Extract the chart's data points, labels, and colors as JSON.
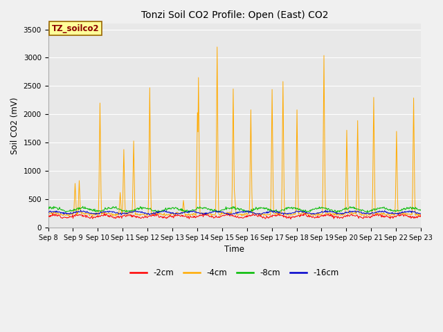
{
  "title": "Tonzi Soil CO2 Profile: Open (East) CO2",
  "ylabel": "Soil CO2 (mV)",
  "xlabel": "Time",
  "legend_label": "TZ_soilco2",
  "ylim": [
    0,
    3600
  ],
  "yticks": [
    0,
    500,
    1000,
    1500,
    2000,
    2500,
    3000,
    3500
  ],
  "x_labels": [
    "Sep 8",
    "Sep 9",
    "Sep 10",
    "Sep 11",
    "Sep 12",
    "Sep 13",
    "Sep 14",
    "Sep 15",
    "Sep 16",
    "Sep 17",
    "Sep 18",
    "Sep 19",
    "Sep 20",
    "Sep 21",
    "Sep 22",
    "Sep 23"
  ],
  "series_colors": {
    "-2cm": "#ff0000",
    "-4cm": "#ffaa00",
    "-8cm": "#00bb00",
    "-16cm": "#0000cc"
  },
  "fig_bg_color": "#f0f0f0",
  "plot_bg_color": "#e8e8e8",
  "grid_color": "#ffffff",
  "legend_entries": [
    "-2cm",
    "-4cm",
    "-8cm",
    "-16cm"
  ],
  "spike_days": [
    1.1,
    1.25,
    2.1,
    2.9,
    3.05,
    3.45,
    4.1,
    5.45,
    6.0,
    6.05,
    6.8,
    7.45,
    7.5,
    8.15,
    9.0,
    9.45,
    10.0,
    11.1,
    12.0,
    12.45,
    13.1,
    14.0,
    14.7
  ],
  "spike_heights": [
    780,
    830,
    2200,
    620,
    1380,
    1530,
    2470,
    480,
    2030,
    2650,
    3190,
    2450,
    550,
    2080,
    2440,
    2580,
    2080,
    3040,
    1720,
    1890,
    2300,
    1700,
    2290
  ]
}
